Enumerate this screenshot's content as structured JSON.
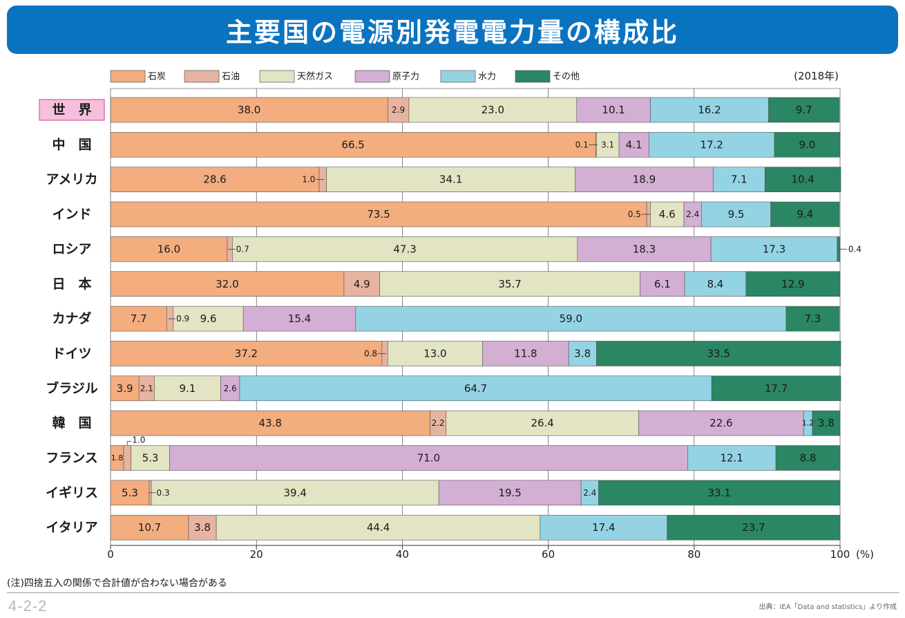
{
  "title": "主要国の電源別発電電力量の構成比",
  "year_note": "(2018年)",
  "footnote": "(注)四捨五入の関係で合計値が合わない場合がある",
  "figure_code": "4-2-2",
  "source": "出典：IEA「Data and statistics」より作成",
  "chart_data": {
    "type": "bar",
    "orientation": "horizontal",
    "stacked": true,
    "xlim": [
      0,
      100
    ],
    "xticks": [
      0,
      20,
      40,
      60,
      80,
      100
    ],
    "xtick_labels": [
      "0",
      "20",
      "40",
      "60",
      "80",
      "100"
    ],
    "unit_label": "(%)",
    "grid": true,
    "legend_position": "top",
    "highlight_category": "世　界",
    "categories": [
      "世　界",
      "中　国",
      "アメリカ",
      "インド",
      "ロシア",
      "日　本",
      "カナダ",
      "ドイツ",
      "ブラジル",
      "韓　国",
      "フランス",
      "イギリス",
      "イタリア"
    ],
    "series": [
      {
        "name": "石炭",
        "color": "#f3ad7e",
        "values": [
          38.0,
          66.5,
          28.6,
          73.5,
          16.0,
          32.0,
          7.7,
          37.2,
          3.9,
          43.8,
          1.8,
          5.3,
          10.7
        ]
      },
      {
        "name": "石油",
        "color": "#e6b4a0",
        "values": [
          2.9,
          0.1,
          1.0,
          0.5,
          0.7,
          4.9,
          0.9,
          0.8,
          2.1,
          2.2,
          1.0,
          0.3,
          3.8
        ]
      },
      {
        "name": "天然ガス",
        "color": "#e2e4c3",
        "values": [
          23.0,
          3.1,
          34.1,
          4.6,
          47.3,
          35.7,
          9.6,
          13.0,
          9.1,
          26.4,
          5.3,
          39.4,
          44.4
        ]
      },
      {
        "name": "原子力",
        "color": "#d3afd3",
        "values": [
          10.1,
          4.1,
          18.9,
          2.4,
          18.3,
          6.1,
          15.4,
          11.8,
          2.6,
          22.6,
          71.0,
          19.5,
          0
        ]
      },
      {
        "name": "水力",
        "color": "#94d3e4",
        "values": [
          16.2,
          17.2,
          7.1,
          9.5,
          17.3,
          8.4,
          59.0,
          3.8,
          64.7,
          1.2,
          12.1,
          2.4,
          17.4
        ]
      },
      {
        "name": "その他",
        "color": "#2a8663",
        "values": [
          9.7,
          9.0,
          10.4,
          9.4,
          0.4,
          12.9,
          7.3,
          33.5,
          17.7,
          3.8,
          8.8,
          33.1,
          23.7
        ]
      }
    ]
  }
}
